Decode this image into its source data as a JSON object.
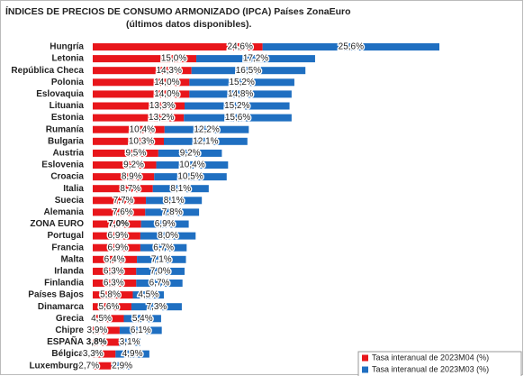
{
  "chart_data": {
    "type": "bar",
    "orientation": "horizontal",
    "stacked": true,
    "title": "ÍNDICES DE PRECIOS DE CONSUMO ARMONIZADO (IPCA) Países ZonaEuro",
    "subtitle": "(últimos datos disponibles).",
    "categories": [
      "Hungría",
      "Letonia",
      "República Checa",
      "Polonia",
      "Eslovaquia",
      "Lituania",
      "Estonia",
      "Rumanía",
      "Bulgaria",
      "Austria",
      "Eslovenia",
      "Croacia",
      "Italia",
      "Suecia",
      "Alemania",
      "ZONA EURO",
      "Portugal",
      "Francia",
      "Malta",
      "Irlanda",
      "Finlandia",
      "Países Bajos",
      "Dinamarca",
      "Grecia",
      "Chipre",
      "ESPAÑA",
      "Bélgica",
      "Luxemburgo"
    ],
    "highlight": [
      15,
      25
    ],
    "series": [
      {
        "name": "Tasa interanual de 2023M04 (%)",
        "color": "#e8161b",
        "values": [
          24.6,
          15.0,
          14.3,
          14.0,
          14.0,
          13.3,
          13.2,
          10.4,
          10.3,
          9.5,
          9.2,
          8.9,
          8.7,
          7.7,
          7.6,
          7.0,
          6.9,
          6.9,
          6.4,
          6.3,
          6.3,
          5.8,
          5.6,
          4.5,
          3.9,
          3.8,
          3.3,
          2.7
        ],
        "value_labels": [
          "24,6%",
          "15,0%",
          "14,3%",
          "14,0%",
          "14,0%",
          "13,3%",
          "13,2%",
          "10,4%",
          "10,3%",
          "9,5%",
          "9,2%",
          "8,9%",
          "8,7%",
          "7,7%",
          "7,6%",
          "7,0%",
          "6,9%",
          "6,9%",
          "6,4%",
          "6,3%",
          "6,3%",
          "5,8%",
          "5,6%",
          "4,5%",
          "3,9%",
          "3,8%",
          "3,3%",
          "2,7%"
        ]
      },
      {
        "name": "Tasa interanual de 2023M03 (%)",
        "color": "#1f6fc1",
        "values": [
          25.6,
          17.2,
          16.5,
          15.2,
          14.8,
          15.2,
          15.6,
          12.2,
          12.1,
          9.2,
          10.4,
          10.5,
          8.1,
          8.1,
          7.8,
          6.9,
          8.0,
          6.7,
          7.1,
          7.0,
          6.7,
          4.5,
          7.3,
          5.4,
          6.1,
          3.1,
          4.9,
          2.9
        ],
        "value_labels": [
          "25,6%",
          "17,2%",
          "16,5%",
          "15,2%",
          "14,8%",
          "15,2%",
          "15,6%",
          "12,2%",
          "12,1%",
          "9,2%",
          "10,4%",
          "10,5%",
          "8,1%",
          "8,1%",
          "7,8%",
          "6,9%",
          "8,0%",
          "6,7%",
          "7,1%",
          "7,0%",
          "6,7%",
          "4,5%",
          "7,3%",
          "5,4%",
          "6,1%",
          "3,1%",
          "4,9%",
          "2,9%"
        ]
      }
    ],
    "legend": "lower right"
  }
}
